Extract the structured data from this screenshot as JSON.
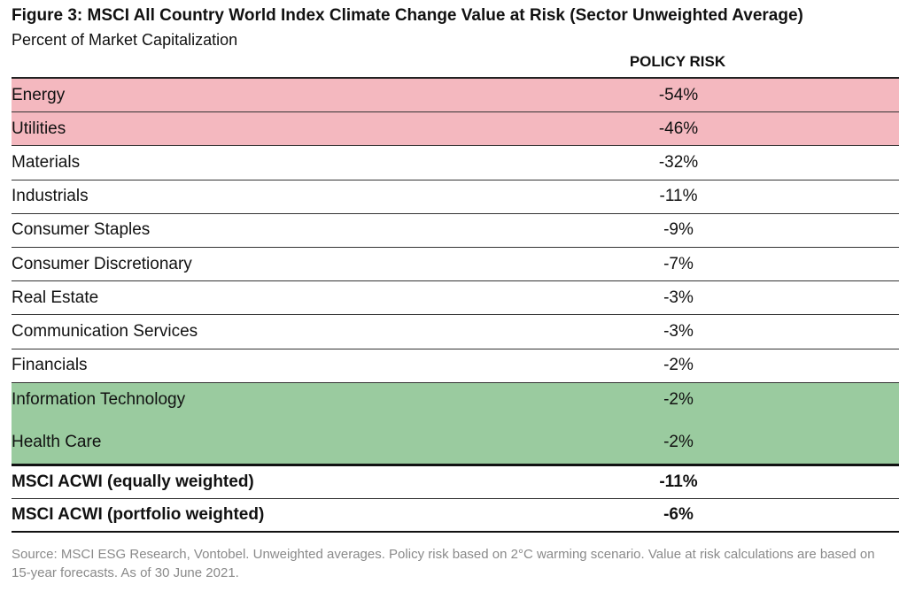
{
  "chart_data": {
    "type": "table",
    "title": "Figure 3: MSCI All Country World Index Climate Change Value at Risk (Sector Unweighted Average)",
    "subtitle": "Percent of Market Capitalization",
    "column_header": "POLICY RISK",
    "rows": [
      {
        "label": "Energy",
        "value": "-54%",
        "highlight": "#f4b8bf"
      },
      {
        "label": "Utilities",
        "value": "-46%",
        "highlight": "#f4b8bf"
      },
      {
        "label": "Materials",
        "value": "-32%"
      },
      {
        "label": "Industrials",
        "value": "-11%"
      },
      {
        "label": "Consumer Staples",
        "value": "-9%"
      },
      {
        "label": "Consumer Discretionary",
        "value": "-7%"
      },
      {
        "label": "Real Estate",
        "value": "-3%"
      },
      {
        "label": "Communication Services",
        "value": "-3%"
      },
      {
        "label": "Financials",
        "value": "-2%"
      },
      {
        "label": "Information Technology",
        "value": "-2%",
        "highlight": "#9acb9f"
      },
      {
        "label": "Health Care",
        "value": "-2%",
        "highlight": "#9acb9f"
      }
    ],
    "summary_rows": [
      {
        "label": "MSCI ACWI (equally weighted)",
        "value": "-11%"
      },
      {
        "label": "MSCI ACWI (portfolio weighted)",
        "value": "-6%"
      }
    ],
    "source": "Source: MSCI ESG Research, Vontobel. Unweighted averages. Policy risk based on 2°C warming scenario. Value at risk calculations are based on 15-year forecasts. As of 30 June 2021."
  },
  "colors": {
    "high_risk": "#f4b8bf",
    "low_risk": "#9acb9f"
  }
}
